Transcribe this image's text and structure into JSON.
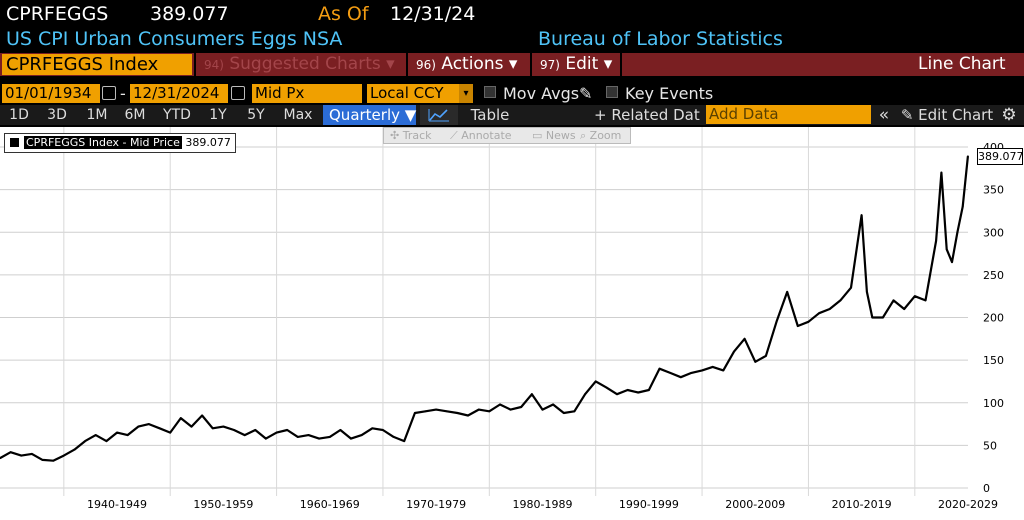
{
  "header": {
    "ticker": "CPRFEGGS",
    "price": "389.077",
    "as_of_label": "As Of",
    "as_of_date": "12/31/24",
    "description": "US CPI Urban Consumers Eggs NSA",
    "source": "Bureau of Labor Statistics"
  },
  "toolbar": {
    "security": "CPRFEGGS Index",
    "suggested_num": "94)",
    "suggested": "Suggested Charts",
    "actions_num": "96)",
    "actions": "Actions",
    "edit_num": "97)",
    "edit": "Edit",
    "chart_type": "Line Chart",
    "caret": "▾"
  },
  "controls": {
    "start_date": "01/01/1934",
    "dash": "-",
    "end_date": "12/31/2024",
    "field": "Mid Px",
    "currency": "Local CCY",
    "mov_avgs": "Mov Avgs",
    "key_events": "Key Events"
  },
  "ranges": {
    "items": [
      "1D",
      "3D",
      "1M",
      "6M",
      "YTD",
      "1Y",
      "5Y",
      "Max"
    ],
    "frequency": "Quarterly ▼",
    "table": "Table",
    "related": "+ Related Data",
    "add_data_placeholder": "Add Data",
    "collapse": "«",
    "edit_chart": "✎ Edit Chart",
    "settings": "⚙"
  },
  "tools": {
    "track": "✣ Track",
    "annotate": "⟋ Annotate",
    "news": "▭ News",
    "zoom": "⌕ Zoom"
  },
  "legend": {
    "name": "CPRFEGGS Index - Mid Price",
    "value": "389.077"
  },
  "last_value": "389.077",
  "colors": {
    "line": "#000000",
    "accent_orange": "#f0a000",
    "accent_cyan": "#4fc3f7",
    "menu_bar": "#7a1f22",
    "selected_blue": "#2b6cd6"
  },
  "chart_data": {
    "type": "line",
    "x_tick_labels": [
      "1940-1949",
      "1950-1959",
      "1960-1969",
      "1970-1979",
      "1980-1989",
      "1990-1999",
      "2000-2009",
      "2010-2019",
      "2020-2029"
    ],
    "y_ticks": [
      0,
      50,
      100,
      150,
      200,
      250,
      300,
      350,
      400
    ],
    "ylim": [
      0,
      400
    ],
    "xlim": [
      1934,
      2025
    ],
    "series": [
      {
        "name": "CPRFEGGS Index - Mid Price",
        "points": [
          [
            1934.0,
            35
          ],
          [
            1935.0,
            42
          ],
          [
            1936.0,
            38
          ],
          [
            1937.0,
            40
          ],
          [
            1938.0,
            33
          ],
          [
            1939.0,
            32
          ],
          [
            1940.0,
            38
          ],
          [
            1941.0,
            45
          ],
          [
            1942.0,
            55
          ],
          [
            1943.0,
            62
          ],
          [
            1944.0,
            55
          ],
          [
            1945.0,
            65
          ],
          [
            1946.0,
            62
          ],
          [
            1947.0,
            72
          ],
          [
            1948.0,
            75
          ],
          [
            1949.0,
            70
          ],
          [
            1950.0,
            65
          ],
          [
            1951.0,
            82
          ],
          [
            1952.0,
            72
          ],
          [
            1953.0,
            85
          ],
          [
            1954.0,
            70
          ],
          [
            1955.0,
            72
          ],
          [
            1956.0,
            68
          ],
          [
            1957.0,
            62
          ],
          [
            1958.0,
            68
          ],
          [
            1959.0,
            58
          ],
          [
            1960.0,
            65
          ],
          [
            1961.0,
            68
          ],
          [
            1962.0,
            60
          ],
          [
            1963.0,
            62
          ],
          [
            1964.0,
            58
          ],
          [
            1965.0,
            60
          ],
          [
            1966.0,
            68
          ],
          [
            1967.0,
            58
          ],
          [
            1968.0,
            62
          ],
          [
            1969.0,
            70
          ],
          [
            1970.0,
            68
          ],
          [
            1971.0,
            60
          ],
          [
            1972.0,
            55
          ],
          [
            1973.0,
            88
          ],
          [
            1974.0,
            90
          ],
          [
            1975.0,
            92
          ],
          [
            1976.0,
            90
          ],
          [
            1977.0,
            88
          ],
          [
            1978.0,
            85
          ],
          [
            1979.0,
            92
          ],
          [
            1980.0,
            90
          ],
          [
            1981.0,
            98
          ],
          [
            1982.0,
            92
          ],
          [
            1983.0,
            95
          ],
          [
            1984.0,
            110
          ],
          [
            1985.0,
            92
          ],
          [
            1986.0,
            98
          ],
          [
            1987.0,
            88
          ],
          [
            1988.0,
            90
          ],
          [
            1989.0,
            110
          ],
          [
            1990.0,
            125
          ],
          [
            1991.0,
            118
          ],
          [
            1992.0,
            110
          ],
          [
            1993.0,
            115
          ],
          [
            1994.0,
            112
          ],
          [
            1995.0,
            115
          ],
          [
            1996.0,
            140
          ],
          [
            1997.0,
            135
          ],
          [
            1998.0,
            130
          ],
          [
            1999.0,
            135
          ],
          [
            2000.0,
            138
          ],
          [
            2001.0,
            142
          ],
          [
            2002.0,
            138
          ],
          [
            2003.0,
            160
          ],
          [
            2004.0,
            175
          ],
          [
            2005.0,
            148
          ],
          [
            2006.0,
            155
          ],
          [
            2007.0,
            195
          ],
          [
            2008.0,
            230
          ],
          [
            2009.0,
            190
          ],
          [
            2010.0,
            195
          ],
          [
            2011.0,
            205
          ],
          [
            2012.0,
            210
          ],
          [
            2013.0,
            220
          ],
          [
            2014.0,
            235
          ],
          [
            2015.0,
            320
          ],
          [
            2015.5,
            230
          ],
          [
            2016.0,
            200
          ],
          [
            2017.0,
            200
          ],
          [
            2018.0,
            220
          ],
          [
            2019.0,
            210
          ],
          [
            2020.0,
            225
          ],
          [
            2021.0,
            220
          ],
          [
            2022.0,
            290
          ],
          [
            2022.5,
            370
          ],
          [
            2023.0,
            280
          ],
          [
            2023.5,
            265
          ],
          [
            2024.0,
            300
          ],
          [
            2024.5,
            330
          ],
          [
            2024.99,
            389.077
          ]
        ]
      }
    ]
  }
}
